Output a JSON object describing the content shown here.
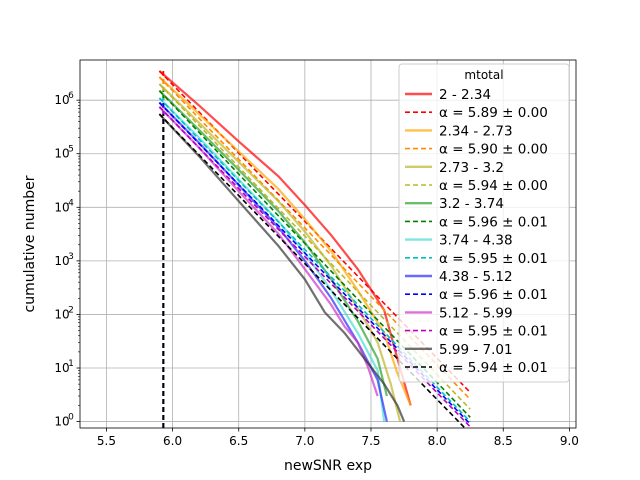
{
  "chart_data": {
    "type": "line",
    "xlabel": "newSNR exp",
    "ylabel": "cumulative number",
    "xlim": [
      5.3,
      9.05
    ],
    "ylim_log10": [
      -0.12,
      6.75
    ],
    "yscale": "log",
    "grid": true,
    "x_ticks": [
      5.5,
      6.0,
      6.5,
      7.0,
      7.5,
      8.0,
      8.5,
      9.0
    ],
    "x_tick_labels": [
      "5.5",
      "6.0",
      "6.5",
      "7.0",
      "7.5",
      "8.0",
      "8.5",
      "9.0"
    ],
    "y_ticks_log10": [
      0,
      1,
      2,
      3,
      4,
      5,
      6
    ],
    "threshold_x": 5.93,
    "legend": {
      "title": "mtotal",
      "location": "upper right"
    },
    "series": [
      {
        "name": "2 - 2.34",
        "fit_name": "α = 5.89 ± 0.00",
        "color": "#ff0000",
        "fit_color": "#ff0000",
        "data": [
          [
            5.9,
            3500000
          ],
          [
            6.2,
            800000
          ],
          [
            6.5,
            170000
          ],
          [
            6.8,
            38000
          ],
          [
            7.0,
            11000
          ],
          [
            7.2,
            3000
          ],
          [
            7.4,
            700
          ],
          [
            7.6,
            120
          ],
          [
            7.7,
            15
          ],
          [
            7.8,
            2
          ]
        ],
        "fit": [
          [
            5.9,
            3500000
          ],
          [
            8.25,
            3.5
          ]
        ]
      },
      {
        "name": "2.34 - 2.73",
        "fit_name": "α = 5.90 ± 0.00",
        "color": "#ffa500",
        "fit_color": "#ff8c00",
        "data": [
          [
            5.9,
            2700000
          ],
          [
            6.2,
            550000
          ],
          [
            6.5,
            110000
          ],
          [
            6.8,
            22000
          ],
          [
            7.0,
            6000
          ],
          [
            7.2,
            1500
          ],
          [
            7.4,
            280
          ],
          [
            7.6,
            45
          ],
          [
            7.7,
            8
          ],
          [
            7.8,
            2
          ]
        ],
        "fit": [
          [
            5.9,
            2700000
          ],
          [
            8.25,
            2.6
          ]
        ]
      },
      {
        "name": "2.73 - 3.2",
        "fit_name": "α = 5.94 ± 0.00",
        "color": "#bdb72a",
        "fit_color": "#bdb72a",
        "data": [
          [
            5.9,
            2000000
          ],
          [
            6.2,
            380000
          ],
          [
            6.5,
            70000
          ],
          [
            6.8,
            13000
          ],
          [
            7.0,
            3500
          ],
          [
            7.2,
            800
          ],
          [
            7.4,
            130
          ],
          [
            7.55,
            30
          ],
          [
            7.65,
            5
          ],
          [
            7.72,
            1
          ]
        ],
        "fit": [
          [
            5.9,
            2000000
          ],
          [
            8.25,
            1.7
          ]
        ]
      },
      {
        "name": "3.2 - 3.74",
        "fit_name": "α = 5.96 ± 0.01",
        "color": "#2ca02c",
        "fit_color": "#008000",
        "data": [
          [
            5.9,
            1500000
          ],
          [
            6.2,
            280000
          ],
          [
            6.5,
            50000
          ],
          [
            6.8,
            8500
          ],
          [
            7.0,
            2200
          ],
          [
            7.2,
            450
          ],
          [
            7.4,
            75
          ],
          [
            7.55,
            15
          ],
          [
            7.62,
            3
          ]
        ],
        "fit": [
          [
            5.9,
            1500000
          ],
          [
            8.25,
            1.2
          ]
        ]
      },
      {
        "name": "3.74 - 4.38",
        "fit_name": "α = 5.95 ± 0.01",
        "color": "#40e0d0",
        "fit_color": "#00c0c0",
        "data": [
          [
            5.9,
            1100000
          ],
          [
            6.2,
            200000
          ],
          [
            6.5,
            33000
          ],
          [
            6.8,
            5500
          ],
          [
            7.0,
            1400
          ],
          [
            7.2,
            280
          ],
          [
            7.4,
            45
          ],
          [
            7.55,
            9
          ],
          [
            7.6,
            1
          ]
        ],
        "fit": [
          [
            5.9,
            1100000
          ],
          [
            8.25,
            1.0
          ]
        ]
      },
      {
        "name": "4.38 - 5.12",
        "fit_name": "α = 5.96 ± 0.01",
        "color": "#2b2bff",
        "fit_color": "#0000ff",
        "data": [
          [
            5.9,
            900000
          ],
          [
            6.2,
            160000
          ],
          [
            6.5,
            26000
          ],
          [
            6.8,
            4200
          ],
          [
            7.0,
            1000
          ],
          [
            7.2,
            200
          ],
          [
            7.4,
            30
          ],
          [
            7.55,
            6
          ],
          [
            7.62,
            1
          ]
        ],
        "fit": [
          [
            5.9,
            900000
          ],
          [
            8.25,
            0.9
          ]
        ]
      },
      {
        "name": "5.12 - 5.99",
        "fit_name": "α = 5.95 ± 0.01",
        "color": "#cc33cc",
        "fit_color": "#bf00bf",
        "data": [
          [
            5.9,
            750000
          ],
          [
            6.2,
            130000
          ],
          [
            6.5,
            20000
          ],
          [
            6.8,
            3200
          ],
          [
            7.0,
            700
          ],
          [
            7.2,
            150
          ],
          [
            7.3,
            60
          ],
          [
            7.4,
            30
          ],
          [
            7.48,
            10
          ],
          [
            7.55,
            3
          ]
        ],
        "fit": [
          [
            5.9,
            750000
          ],
          [
            8.25,
            0.8
          ]
        ]
      },
      {
        "name": "5.99 - 7.01",
        "fit_name": "α = 5.94 ± 0.01",
        "color": "#333333",
        "fit_color": "#000000",
        "data": [
          [
            5.9,
            550000
          ],
          [
            6.2,
            90000
          ],
          [
            6.5,
            13000
          ],
          [
            6.8,
            1900
          ],
          [
            7.0,
            450
          ],
          [
            7.15,
            110
          ],
          [
            7.3,
            45
          ],
          [
            7.45,
            15
          ],
          [
            7.6,
            5
          ],
          [
            7.7,
            2
          ],
          [
            7.75,
            1
          ]
        ],
        "fit": [
          [
            5.9,
            550000
          ],
          [
            8.25,
            0.6
          ]
        ]
      }
    ]
  }
}
